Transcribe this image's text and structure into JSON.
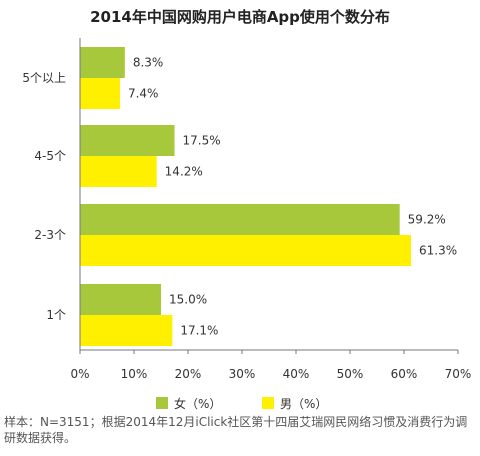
{
  "chart_data": {
    "type": "bar",
    "orientation": "horizontal",
    "title": "2014年中国网购用户电商App使用个数分布",
    "categories": [
      "5个以上",
      "4-5个",
      "2-3个",
      "1个"
    ],
    "series": [
      {
        "name": "女（%）",
        "color": "#a6c83a",
        "values": [
          8.3,
          17.5,
          59.2,
          15.0
        ],
        "labels": [
          "8.3%",
          "17.5%",
          "59.2%",
          "15.0%"
        ]
      },
      {
        "name": "男（%）",
        "color": "#fff000",
        "values": [
          7.4,
          14.2,
          61.3,
          17.1
        ],
        "labels": [
          "7.4%",
          "14.2%",
          "61.3%",
          "17.1%"
        ]
      }
    ],
    "xlim": [
      0,
      70
    ],
    "xticks": [
      0,
      10,
      20,
      30,
      40,
      50,
      60,
      70
    ],
    "xtick_labels": [
      "0%",
      "10%",
      "20%",
      "30%",
      "40%",
      "50%",
      "60%",
      "70%"
    ],
    "legend_position": "bottom",
    "grid": false
  },
  "source_note": "样本：N=3151；根据2014年12月iClick社区第十四届艾瑞网民网络习惯及消费行为调研数据获得。"
}
